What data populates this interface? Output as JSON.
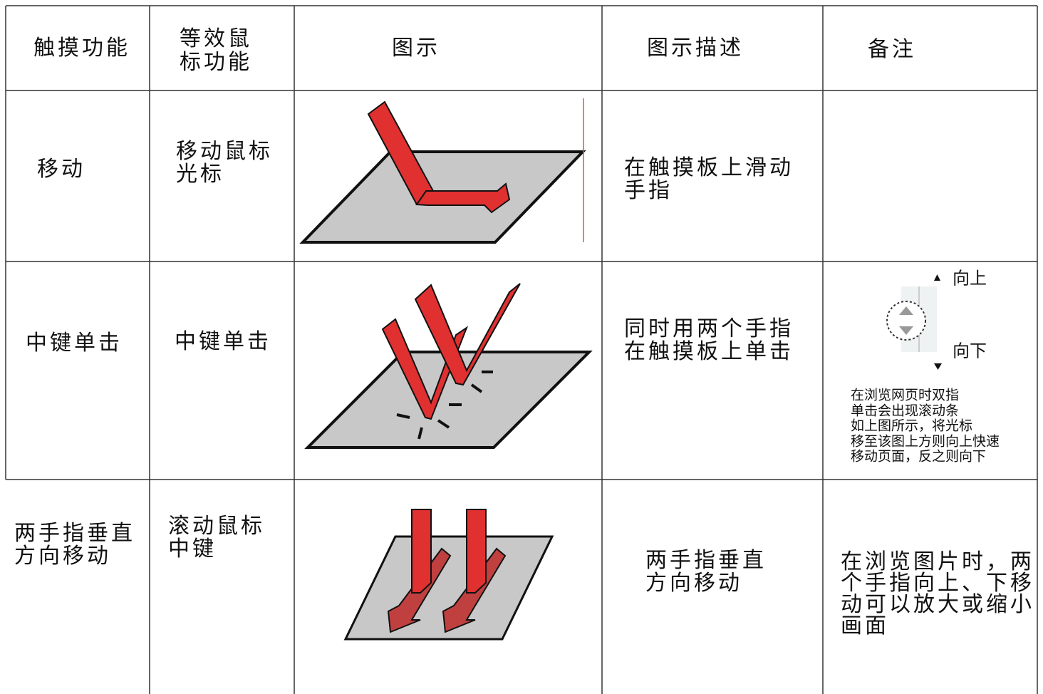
{
  "header": [
    [
      "触摸功能"
    ],
    [
      "等效鼠",
      "标功能"
    ],
    [
      "图示"
    ],
    [
      "图示描述"
    ],
    [
      "备注"
    ]
  ],
  "rows": [
    {
      "function": [
        "移动"
      ],
      "mouse": [
        "移动鼠标",
        "光标"
      ],
      "description": [
        "在触摸板上滑动",
        "手指"
      ],
      "note": []
    },
    {
      "function": [
        "中键单击"
      ],
      "mouse": [
        "中键单击"
      ],
      "description": [
        "同时用两个手指",
        "在触摸板上单击"
      ],
      "scroll_up": "向上",
      "scroll_down": "向下",
      "note": [
        "在浏览网页时双指",
        "单击会出现滚动条",
        "如上图所示，将光标",
        "移至该图上方则向上快速",
        "移动页面，反之则向下"
      ]
    },
    {
      "function": [
        "两手指垂直",
        "方向移动"
      ],
      "mouse": [
        "滚动鼠标",
        "中键"
      ],
      "description": [
        "两手指垂直",
        "方向移动"
      ],
      "note": [
        "在浏览图片时，两",
        "个手指向上、下移",
        "动可以放大或缩小",
        "画面"
      ]
    }
  ]
}
